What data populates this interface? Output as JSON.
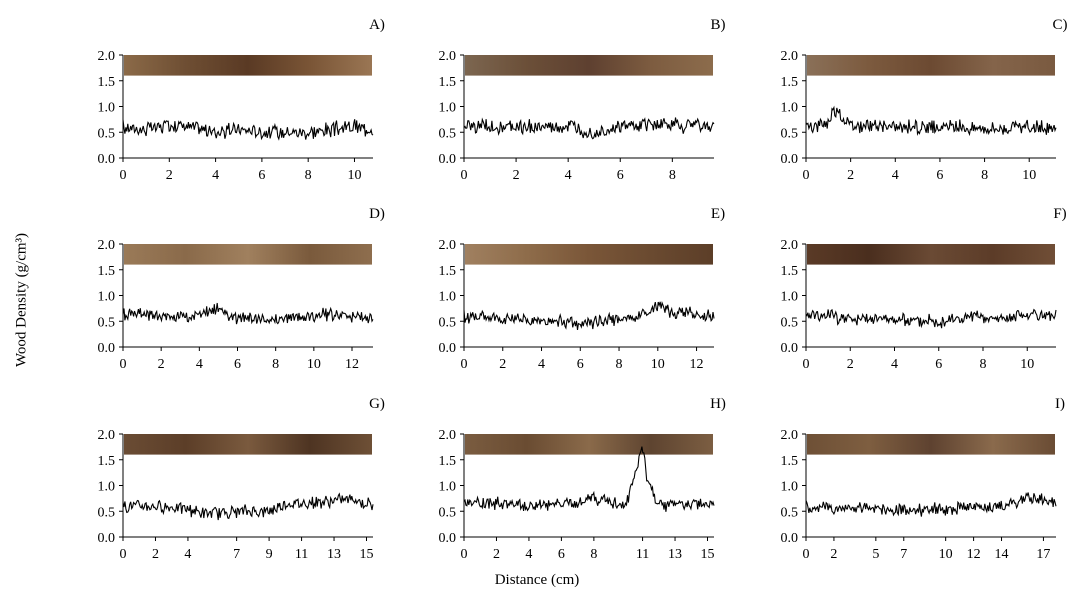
{
  "figure": {
    "ylabel": "Wood Density (g/cm³)",
    "xlabel": "Distance (cm)",
    "colors": {
      "line": "#000000",
      "axis": "#000000"
    }
  },
  "chart_data": [
    {
      "type": "line",
      "panel": "A)",
      "xlim": [
        0,
        10.8
      ],
      "xticks": [
        "0",
        "2",
        "4",
        "6",
        "8",
        "10"
      ],
      "xtick_values": [
        0,
        2,
        4,
        6,
        8,
        10
      ],
      "ylim": [
        0,
        2.0
      ],
      "yticks": [
        "0.0",
        "0.5",
        "1.0",
        "1.5",
        "2.0"
      ],
      "mean": 0.55,
      "noise": 0.12,
      "series": [
        {
          "x": [
            0,
            1,
            2,
            3,
            4,
            5,
            6,
            7,
            8,
            9,
            10,
            10.8
          ],
          "y": [
            0.6,
            0.55,
            0.65,
            0.6,
            0.5,
            0.55,
            0.5,
            0.5,
            0.5,
            0.55,
            0.6,
            0.55
          ]
        }
      ],
      "wood_tones": [
        "#8b6a48",
        "#6e4e33",
        "#5a3a24",
        "#7a5536",
        "#9a7654"
      ]
    },
    {
      "type": "line",
      "panel": "B)",
      "xlim": [
        0,
        9.6
      ],
      "xticks": [
        "0",
        "2",
        "4",
        "6",
        "8"
      ],
      "xtick_values": [
        0,
        2,
        4,
        6,
        8
      ],
      "ylim": [
        0,
        2.0
      ],
      "yticks": [
        "0.0",
        "0.5",
        "1.0",
        "1.5",
        "2.0"
      ],
      "mean": 0.6,
      "noise": 0.12,
      "series": [
        {
          "x": [
            0,
            1,
            2,
            3,
            4,
            5,
            6,
            7,
            8,
            9,
            9.6
          ],
          "y": [
            0.6,
            0.6,
            0.6,
            0.6,
            0.6,
            0.5,
            0.6,
            0.65,
            0.65,
            0.65,
            0.6
          ]
        }
      ],
      "wood_tones": [
        "#7c6650",
        "#6b4f38",
        "#5e4030",
        "#7d5c40",
        "#8c6c4c"
      ]
    },
    {
      "type": "line",
      "panel": "C)",
      "xlim": [
        0,
        11.2
      ],
      "xticks": [
        "0",
        "2",
        "4",
        "6",
        "8",
        "10"
      ],
      "xtick_values": [
        0,
        2,
        4,
        6,
        8,
        10
      ],
      "ylim": [
        0,
        2.0
      ],
      "yticks": [
        "0.0",
        "0.5",
        "1.0",
        "1.5",
        "2.0"
      ],
      "mean": 0.6,
      "noise": 0.11,
      "series": [
        {
          "x": [
            0,
            1,
            1.2,
            2,
            4,
            6,
            8,
            10,
            11.2
          ],
          "y": [
            0.6,
            0.7,
            0.95,
            0.65,
            0.6,
            0.6,
            0.58,
            0.6,
            0.55
          ]
        }
      ],
      "wood_tones": [
        "#8a7058",
        "#7c5a3e",
        "#6c4a32",
        "#84644a",
        "#7a5a40"
      ]
    },
    {
      "type": "line",
      "panel": "D)",
      "xlim": [
        0,
        13.1
      ],
      "xticks": [
        "0",
        "2",
        "4",
        "6",
        "8",
        "10",
        "12"
      ],
      "xtick_values": [
        0,
        2,
        4,
        6,
        8,
        10,
        12
      ],
      "ylim": [
        0,
        2.0
      ],
      "yticks": [
        "0.0",
        "0.5",
        "1.0",
        "1.5",
        "2.0"
      ],
      "mean": 0.6,
      "noise": 0.1,
      "series": [
        {
          "x": [
            0,
            2,
            4,
            5,
            6,
            8,
            10,
            11,
            12,
            13.1
          ],
          "y": [
            0.65,
            0.6,
            0.6,
            0.75,
            0.55,
            0.55,
            0.6,
            0.65,
            0.6,
            0.55
          ]
        }
      ],
      "wood_tones": [
        "#9a7a58",
        "#8a6a4a",
        "#a0805e",
        "#7a5a3c",
        "#8e6e4e"
      ]
    },
    {
      "type": "line",
      "panel": "E)",
      "xlim": [
        0,
        12.9
      ],
      "xticks": [
        "0",
        "2",
        "4",
        "6",
        "8",
        "10",
        "12"
      ],
      "xtick_values": [
        0,
        2,
        4,
        6,
        8,
        10,
        12
      ],
      "ylim": [
        0,
        2.0
      ],
      "yticks": [
        "0.0",
        "0.5",
        "1.0",
        "1.5",
        "2.0"
      ],
      "mean": 0.55,
      "noise": 0.1,
      "series": [
        {
          "x": [
            0,
            2,
            4,
            6,
            8,
            9,
            10,
            11,
            12,
            12.9
          ],
          "y": [
            0.6,
            0.55,
            0.5,
            0.45,
            0.55,
            0.6,
            0.8,
            0.65,
            0.65,
            0.6
          ]
        }
      ],
      "wood_tones": [
        "#a08060",
        "#8e6c4a",
        "#7a5638",
        "#6a4a30",
        "#5c3e28"
      ]
    },
    {
      "type": "line",
      "panel": "F)",
      "xlim": [
        0,
        11.3
      ],
      "xticks": [
        "0",
        "2",
        "4",
        "6",
        "8",
        "10"
      ],
      "xtick_values": [
        0,
        2,
        4,
        6,
        8,
        10
      ],
      "ylim": [
        0,
        2.0
      ],
      "yticks": [
        "0.0",
        "0.5",
        "1.0",
        "1.5",
        "2.0"
      ],
      "mean": 0.55,
      "noise": 0.1,
      "series": [
        {
          "x": [
            0,
            1,
            2,
            4,
            6,
            7.5,
            8,
            10,
            11.3
          ],
          "y": [
            0.65,
            0.6,
            0.55,
            0.55,
            0.5,
            0.6,
            0.55,
            0.6,
            0.6
          ]
        }
      ],
      "wood_tones": [
        "#5a3a26",
        "#4a2e1e",
        "#6a4a34",
        "#5c3c28",
        "#704e36"
      ]
    },
    {
      "type": "line",
      "panel": "G)",
      "xlim": [
        0,
        15.4
      ],
      "xticks": [
        "0",
        "2",
        "4",
        "7",
        "9",
        "11",
        "13",
        "15"
      ],
      "xtick_values": [
        0,
        2,
        4,
        7,
        9,
        11,
        13,
        15
      ],
      "ylim": [
        0,
        2.0
      ],
      "yticks": [
        "0.0",
        "0.5",
        "1.0",
        "1.5",
        "2.0"
      ],
      "mean": 0.58,
      "noise": 0.1,
      "series": [
        {
          "x": [
            0,
            2,
            4,
            5,
            7,
            9,
            10,
            11,
            13,
            14,
            15.4
          ],
          "y": [
            0.6,
            0.6,
            0.55,
            0.45,
            0.5,
            0.5,
            0.65,
            0.65,
            0.7,
            0.75,
            0.6
          ]
        }
      ],
      "wood_tones": [
        "#6a4c34",
        "#5c3e28",
        "#7a5a3e",
        "#4e3422",
        "#6e5036"
      ]
    },
    {
      "type": "line",
      "panel": "H)",
      "xlim": [
        0,
        15.4
      ],
      "xticks": [
        "0",
        "2",
        "4",
        "6",
        "8",
        "11",
        "13",
        "15"
      ],
      "xtick_values": [
        0,
        2,
        4,
        6,
        8,
        11,
        13,
        15
      ],
      "ylim": [
        0,
        2.0
      ],
      "yticks": [
        "0.0",
        "0.5",
        "1.0",
        "1.5",
        "2.0"
      ],
      "mean": 0.62,
      "noise": 0.1,
      "series": [
        {
          "x": [
            0,
            2,
            4,
            6,
            8,
            10,
            11,
            11.3,
            12,
            13,
            15.4
          ],
          "y": [
            0.7,
            0.65,
            0.6,
            0.65,
            0.75,
            0.6,
            1.75,
            1.1,
            0.6,
            0.65,
            0.6
          ]
        }
      ],
      "wood_tones": [
        "#7a5c40",
        "#6a4c32",
        "#8a6a4a",
        "#5e4430",
        "#7c5e42"
      ]
    },
    {
      "type": "line",
      "panel": "I)",
      "xlim": [
        0,
        17.9
      ],
      "xticks": [
        "0",
        "2",
        "5",
        "7",
        "10",
        "12",
        "14",
        "17"
      ],
      "xtick_values": [
        0,
        2,
        5,
        7,
        10,
        12,
        14,
        17
      ],
      "ylim": [
        0,
        2.0
      ],
      "yticks": [
        "0.0",
        "0.5",
        "1.0",
        "1.5",
        "2.0"
      ],
      "mean": 0.58,
      "noise": 0.1,
      "series": [
        {
          "x": [
            0,
            2,
            5,
            7,
            10,
            12,
            14,
            15,
            16,
            17,
            17.9
          ],
          "y": [
            0.6,
            0.55,
            0.55,
            0.5,
            0.55,
            0.6,
            0.6,
            0.7,
            0.75,
            0.7,
            0.65
          ]
        }
      ],
      "wood_tones": [
        "#6e5036",
        "#7e5e40",
        "#5e4230",
        "#8a6a4c",
        "#6a4c34"
      ]
    }
  ]
}
